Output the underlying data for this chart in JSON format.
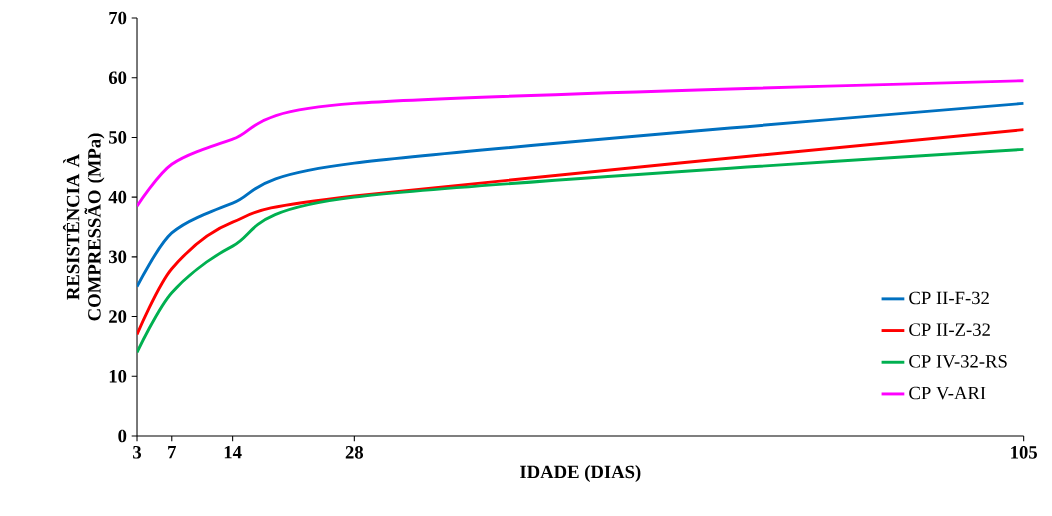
{
  "chart_data": {
    "type": "line",
    "xlabel": "IDADE (DIAS)",
    "ylabel": "RESISTÊNCIA À COMPRESSÃO (MPa)",
    "x": [
      3,
      7,
      14,
      28,
      105
    ],
    "xlim": [
      3,
      105
    ],
    "xticks": [
      3,
      7,
      14,
      28,
      105
    ],
    "ylim": [
      0,
      70
    ],
    "yticks": [
      0,
      10,
      20,
      30,
      40,
      50,
      60,
      70
    ],
    "grid": false,
    "legend": "right",
    "marker": "none",
    "line_style": "solid",
    "series": [
      {
        "name": "CP II-F-32",
        "color": "#0070c0",
        "values": [
          25,
          34,
          39,
          45.7,
          55.7
        ]
      },
      {
        "name": "CP II-Z-32",
        "color": "#ff0000",
        "values": [
          17,
          28,
          35.8,
          40.2,
          51.3
        ]
      },
      {
        "name": "CP IV-32-RS",
        "color": "#00b050",
        "values": [
          14,
          24,
          31.8,
          40,
          48
        ]
      },
      {
        "name": "CP V-ARI",
        "color": "#ff00ff",
        "values": [
          38.5,
          45.5,
          49.7,
          55.7,
          59.5
        ]
      }
    ]
  }
}
